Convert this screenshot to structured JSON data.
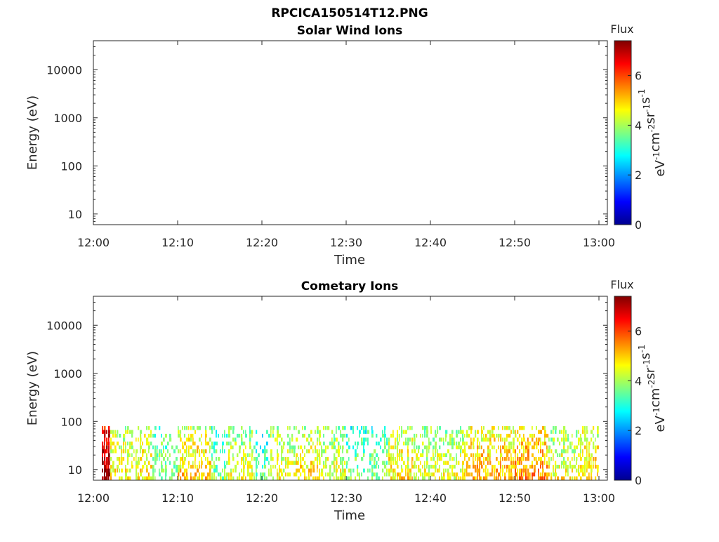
{
  "title": "RPCICA150514T12.PNG",
  "colorbar": {
    "label": "Flux",
    "unit_parts": [
      "eV",
      "-1",
      "cm",
      "-2",
      "sr",
      "-1",
      "s",
      "-1"
    ],
    "tick_labels": [
      "0",
      "2",
      "4",
      "6"
    ],
    "range": [
      0,
      7.4
    ],
    "colormap": "jet"
  },
  "chart_data": [
    {
      "type": "heatmap",
      "title": "Solar Wind Ions",
      "xlabel": "Time",
      "ylabel": "Energy (eV)",
      "x_tick_labels": [
        "12:00",
        "12:10",
        "12:20",
        "12:30",
        "12:40",
        "12:50",
        "13:00"
      ],
      "y_tick_labels": [
        "10",
        "100",
        "1000",
        "10000"
      ],
      "y_scale": "log",
      "xlim": [
        "12:00",
        "13:01"
      ],
      "ylim": [
        6,
        40000
      ],
      "data": []
    },
    {
      "type": "heatmap",
      "title": "Cometary Ions",
      "xlabel": "Time",
      "ylabel": "Energy (eV)",
      "x_tick_labels": [
        "12:00",
        "12:10",
        "12:20",
        "12:30",
        "12:40",
        "12:50",
        "13:00"
      ],
      "y_tick_labels": [
        "10",
        "100",
        "1000",
        "10000"
      ],
      "y_scale": "log",
      "xlim": [
        "12:00",
        "13:01"
      ],
      "ylim": [
        6,
        40000
      ],
      "energy_range": [
        6,
        80
      ],
      "time_range": [
        "12:01",
        "13:00"
      ],
      "activity": [
        {
          "start": "12:01",
          "end": "12:02",
          "flux": 7.2
        },
        {
          "start": "12:02",
          "end": "12:07",
          "flux": 4.8
        },
        {
          "start": "12:07",
          "end": "12:10",
          "flux": 4.0
        },
        {
          "start": "12:10",
          "end": "12:14",
          "flux": 5.0
        },
        {
          "start": "12:14",
          "end": "12:16",
          "flux": 3.8
        },
        {
          "start": "12:16",
          "end": "12:19",
          "flux": 4.5
        },
        {
          "start": "12:19",
          "end": "12:21",
          "flux": 3.6
        },
        {
          "start": "12:21",
          "end": "12:24",
          "flux": 4.5
        },
        {
          "start": "12:24",
          "end": "12:27",
          "flux": 4.8
        },
        {
          "start": "12:27",
          "end": "12:30",
          "flux": 4.5
        },
        {
          "start": "12:30",
          "end": "12:35",
          "flux": 3.8
        },
        {
          "start": "12:35",
          "end": "12:38",
          "flux": 4.8
        },
        {
          "start": "12:38",
          "end": "12:44",
          "flux": 4.5
        },
        {
          "start": "12:44",
          "end": "12:50",
          "flux": 5.2
        },
        {
          "start": "12:50",
          "end": "12:54",
          "flux": 5.5
        },
        {
          "start": "12:54",
          "end": "12:58",
          "flux": 4.6
        },
        {
          "start": "12:58",
          "end": "13:00",
          "flux": 5.0
        }
      ]
    }
  ]
}
